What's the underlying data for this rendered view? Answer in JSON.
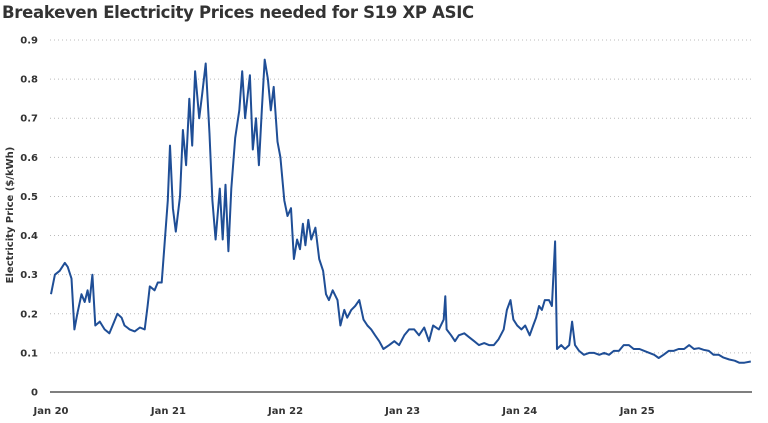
{
  "chart_data": {
    "type": "line",
    "title": "Breakeven Electricity Prices needed for S19 XP ASIC",
    "xlabel": "",
    "ylabel": "Electricity Price ($/kWh)",
    "ylim": [
      0,
      0.9
    ],
    "xlim": [
      "2020-01-01",
      "2025-12-31"
    ],
    "grid": true,
    "legend": "none",
    "line_color": "#1f4e96",
    "yticks": [
      {
        "v": 0,
        "label": "0"
      },
      {
        "v": 0.1,
        "label": "0.1"
      },
      {
        "v": 0.2,
        "label": "0.2"
      },
      {
        "v": 0.3,
        "label": "0.3"
      },
      {
        "v": 0.4,
        "label": "0.4"
      },
      {
        "v": 0.5,
        "label": "0.5"
      },
      {
        "v": 0.6,
        "label": "0.6"
      },
      {
        "v": 0.7,
        "label": "0.7"
      },
      {
        "v": 0.8,
        "label": "0.8"
      },
      {
        "v": 0.9,
        "label": "0.9"
      }
    ],
    "xticks": [
      {
        "d": "2020-01-01",
        "label": "Jan 20"
      },
      {
        "d": "2021-01-01",
        "label": "Jan 21"
      },
      {
        "d": "2022-01-01",
        "label": "Jan 22"
      },
      {
        "d": "2023-01-01",
        "label": "Jan 23"
      },
      {
        "d": "2024-01-01",
        "label": "Jan 24"
      },
      {
        "d": "2025-01-01",
        "label": "Jan 25"
      }
    ],
    "series": [
      {
        "points": [
          [
            "2020-01-01",
            0.25
          ],
          [
            "2020-01-13",
            0.3
          ],
          [
            "2020-01-28",
            0.31
          ],
          [
            "2020-02-13",
            0.33
          ],
          [
            "2020-02-22",
            0.32
          ],
          [
            "2020-03-05",
            0.29
          ],
          [
            "2020-03-14",
            0.16
          ],
          [
            "2020-03-23",
            0.2
          ],
          [
            "2020-04-05",
            0.25
          ],
          [
            "2020-04-15",
            0.23
          ],
          [
            "2020-04-24",
            0.26
          ],
          [
            "2020-04-30",
            0.23
          ],
          [
            "2020-05-09",
            0.3
          ],
          [
            "2020-05-18",
            0.17
          ],
          [
            "2020-06-01",
            0.18
          ],
          [
            "2020-06-16",
            0.16
          ],
          [
            "2020-07-01",
            0.15
          ],
          [
            "2020-07-16",
            0.18
          ],
          [
            "2020-07-26",
            0.2
          ],
          [
            "2020-08-08",
            0.19
          ],
          [
            "2020-08-17",
            0.17
          ],
          [
            "2020-09-02",
            0.16
          ],
          [
            "2020-09-18",
            0.155
          ],
          [
            "2020-10-04",
            0.165
          ],
          [
            "2020-10-19",
            0.16
          ],
          [
            "2020-10-28",
            0.22
          ],
          [
            "2020-11-04",
            0.27
          ],
          [
            "2020-11-19",
            0.26
          ],
          [
            "2020-11-29",
            0.28
          ],
          [
            "2020-12-11",
            0.28
          ],
          [
            "2020-12-21",
            0.39
          ],
          [
            "2020-12-30",
            0.49
          ],
          [
            "2021-01-06",
            0.63
          ],
          [
            "2021-01-15",
            0.47
          ],
          [
            "2021-01-24",
            0.41
          ],
          [
            "2021-02-06",
            0.5
          ],
          [
            "2021-02-15",
            0.67
          ],
          [
            "2021-02-25",
            0.58
          ],
          [
            "2021-03-07",
            0.75
          ],
          [
            "2021-03-16",
            0.63
          ],
          [
            "2021-03-25",
            0.82
          ],
          [
            "2021-04-07",
            0.7
          ],
          [
            "2021-04-16",
            0.76
          ],
          [
            "2021-04-27",
            0.84
          ],
          [
            "2021-05-09",
            0.66
          ],
          [
            "2021-05-18",
            0.49
          ],
          [
            "2021-05-28",
            0.39
          ],
          [
            "2021-06-10",
            0.52
          ],
          [
            "2021-06-19",
            0.39
          ],
          [
            "2021-06-28",
            0.53
          ],
          [
            "2021-07-07",
            0.36
          ],
          [
            "2021-07-16",
            0.52
          ],
          [
            "2021-07-28",
            0.65
          ],
          [
            "2021-08-10",
            0.72
          ],
          [
            "2021-08-19",
            0.82
          ],
          [
            "2021-08-28",
            0.7
          ],
          [
            "2021-09-12",
            0.81
          ],
          [
            "2021-09-21",
            0.62
          ],
          [
            "2021-10-01",
            0.7
          ],
          [
            "2021-10-10",
            0.58
          ],
          [
            "2021-10-19",
            0.72
          ],
          [
            "2021-10-28",
            0.85
          ],
          [
            "2021-11-07",
            0.8
          ],
          [
            "2021-11-16",
            0.72
          ],
          [
            "2021-11-25",
            0.78
          ],
          [
            "2021-12-07",
            0.64
          ],
          [
            "2021-12-16",
            0.6
          ],
          [
            "2021-12-28",
            0.49
          ],
          [
            "2022-01-07",
            0.45
          ],
          [
            "2022-01-18",
            0.47
          ],
          [
            "2022-01-27",
            0.34
          ],
          [
            "2022-02-06",
            0.39
          ],
          [
            "2022-02-15",
            0.365
          ],
          [
            "2022-02-24",
            0.43
          ],
          [
            "2022-03-04",
            0.375
          ],
          [
            "2022-03-13",
            0.44
          ],
          [
            "2022-03-22",
            0.39
          ],
          [
            "2022-04-04",
            0.42
          ],
          [
            "2022-04-16",
            0.34
          ],
          [
            "2022-04-28",
            0.31
          ],
          [
            "2022-05-07",
            0.25
          ],
          [
            "2022-05-16",
            0.235
          ],
          [
            "2022-05-28",
            0.26
          ],
          [
            "2022-06-12",
            0.235
          ],
          [
            "2022-06-21",
            0.17
          ],
          [
            "2022-07-03",
            0.21
          ],
          [
            "2022-07-12",
            0.19
          ],
          [
            "2022-07-25",
            0.21
          ],
          [
            "2022-08-06",
            0.22
          ],
          [
            "2022-08-19",
            0.235
          ],
          [
            "2022-09-01",
            0.185
          ],
          [
            "2022-09-13",
            0.17
          ],
          [
            "2022-09-25",
            0.16
          ],
          [
            "2022-10-07",
            0.145
          ],
          [
            "2022-10-20",
            0.13
          ],
          [
            "2022-11-02",
            0.11
          ],
          [
            "2022-11-20",
            0.12
          ],
          [
            "2022-12-06",
            0.13
          ],
          [
            "2022-12-21",
            0.12
          ],
          [
            "2023-01-06",
            0.145
          ],
          [
            "2023-01-21",
            0.16
          ],
          [
            "2023-02-06",
            0.16
          ],
          [
            "2023-02-21",
            0.145
          ],
          [
            "2023-03-09",
            0.165
          ],
          [
            "2023-03-24",
            0.13
          ],
          [
            "2023-04-06",
            0.17
          ],
          [
            "2023-04-24",
            0.16
          ],
          [
            "2023-05-09",
            0.185
          ],
          [
            "2023-05-14",
            0.245
          ],
          [
            "2023-05-18",
            0.16
          ],
          [
            "2023-06-01",
            0.145
          ],
          [
            "2023-06-13",
            0.13
          ],
          [
            "2023-06-25",
            0.145
          ],
          [
            "2023-07-12",
            0.15
          ],
          [
            "2023-07-27",
            0.14
          ],
          [
            "2023-08-12",
            0.13
          ],
          [
            "2023-08-27",
            0.12
          ],
          [
            "2023-09-12",
            0.125
          ],
          [
            "2023-09-27",
            0.12
          ],
          [
            "2023-10-12",
            0.12
          ],
          [
            "2023-10-27",
            0.135
          ],
          [
            "2023-11-12",
            0.16
          ],
          [
            "2023-11-22",
            0.21
          ],
          [
            "2023-12-03",
            0.235
          ],
          [
            "2023-12-12",
            0.185
          ],
          [
            "2023-12-24",
            0.17
          ],
          [
            "2024-01-06",
            0.16
          ],
          [
            "2024-01-18",
            0.17
          ],
          [
            "2024-02-01",
            0.145
          ],
          [
            "2024-02-12",
            0.17
          ],
          [
            "2024-02-21",
            0.19
          ],
          [
            "2024-03-01",
            0.22
          ],
          [
            "2024-03-10",
            0.21
          ],
          [
            "2024-03-19",
            0.235
          ],
          [
            "2024-04-01",
            0.235
          ],
          [
            "2024-04-10",
            0.22
          ],
          [
            "2024-04-20",
            0.385
          ],
          [
            "2024-04-26",
            0.11
          ],
          [
            "2024-05-09",
            0.12
          ],
          [
            "2024-05-21",
            0.11
          ],
          [
            "2024-06-03",
            0.12
          ],
          [
            "2024-06-12",
            0.18
          ],
          [
            "2024-06-21",
            0.12
          ],
          [
            "2024-07-04",
            0.105
          ],
          [
            "2024-07-19",
            0.095
          ],
          [
            "2024-08-04",
            0.1
          ],
          [
            "2024-08-20",
            0.1
          ],
          [
            "2024-09-05",
            0.095
          ],
          [
            "2024-09-20",
            0.1
          ],
          [
            "2024-10-05",
            0.095
          ],
          [
            "2024-10-20",
            0.105
          ],
          [
            "2024-11-05",
            0.105
          ],
          [
            "2024-11-20",
            0.12
          ],
          [
            "2024-12-06",
            0.12
          ],
          [
            "2024-12-21",
            0.11
          ],
          [
            "2025-01-08",
            0.11
          ],
          [
            "2025-01-23",
            0.105
          ],
          [
            "2025-02-08",
            0.1
          ],
          [
            "2025-02-23",
            0.095
          ],
          [
            "2025-03-09",
            0.087
          ],
          [
            "2025-03-24",
            0.095
          ],
          [
            "2025-04-09",
            0.105
          ],
          [
            "2025-04-24",
            0.105
          ],
          [
            "2025-05-10",
            0.11
          ],
          [
            "2025-05-27",
            0.11
          ],
          [
            "2025-06-12",
            0.12
          ],
          [
            "2025-06-27",
            0.11
          ],
          [
            "2025-07-12",
            0.112
          ],
          [
            "2025-07-27",
            0.108
          ],
          [
            "2025-08-12",
            0.105
          ],
          [
            "2025-08-27",
            0.095
          ],
          [
            "2025-09-12",
            0.095
          ],
          [
            "2025-09-27",
            0.088
          ],
          [
            "2025-10-15",
            0.083
          ],
          [
            "2025-11-01",
            0.08
          ],
          [
            "2025-11-15",
            0.075
          ],
          [
            "2025-12-01",
            0.075
          ],
          [
            "2025-12-21",
            0.078
          ]
        ]
      }
    ]
  }
}
